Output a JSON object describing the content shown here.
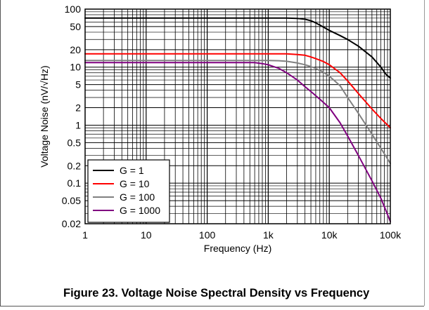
{
  "chart_data": {
    "type": "line",
    "title": "",
    "xlabel": "Frequency (Hz)",
    "ylabel": "Voltage Noise (nV/√Hz)",
    "xscale": "log",
    "yscale": "log",
    "xlim": [
      1,
      100000
    ],
    "ylim": [
      0.02,
      100
    ],
    "x_ticks": [
      1,
      10,
      100,
      1000,
      10000,
      100000
    ],
    "x_tick_labels": [
      "1",
      "10",
      "100",
      "1k",
      "10k",
      "100k"
    ],
    "y_ticks": [
      0.02,
      0.05,
      0.1,
      0.2,
      0.5,
      1,
      2,
      5,
      10,
      20,
      50,
      100
    ],
    "y_tick_labels": [
      "0.02",
      "0.05",
      "0.1",
      "0.2",
      "0.5",
      "1",
      "2",
      "5",
      "10",
      "20",
      "50",
      "100"
    ],
    "grid": true,
    "legend_position": "bottom-left",
    "series": [
      {
        "name": "G = 1",
        "color": "#000000",
        "x": [
          1,
          100,
          1000,
          2000,
          3000,
          4000,
          5000,
          6000,
          7000,
          8000,
          10000,
          15000,
          20000,
          30000,
          50000,
          70000,
          85000,
          100000
        ],
        "y": [
          70,
          70,
          70,
          70,
          69,
          67,
          63,
          58,
          53,
          49,
          43,
          35,
          30,
          23,
          15,
          10,
          7.5,
          6.5
        ]
      },
      {
        "name": "G = 10",
        "color": "#ff0000",
        "x": [
          1,
          100,
          1000,
          2000,
          3000,
          4000,
          5000,
          6000,
          8000,
          10000,
          15000,
          20000,
          30000,
          50000,
          70000,
          100000
        ],
        "y": [
          17,
          17,
          17,
          17,
          16.5,
          16,
          15,
          14,
          12.5,
          11,
          8,
          5.8,
          3.5,
          1.9,
          1.3,
          0.9
        ]
      },
      {
        "name": "G = 100",
        "color": "#808080",
        "x": [
          1,
          100,
          1000,
          1500,
          2000,
          3000,
          4000,
          5000,
          6000,
          8000,
          10000,
          15000,
          20000,
          30000,
          50000,
          70000,
          100000
        ],
        "y": [
          13,
          13,
          13,
          12.9,
          12.6,
          11.8,
          11,
          10.2,
          9.5,
          8.2,
          7,
          4.8,
          3,
          1.6,
          0.7,
          0.4,
          0.22
        ]
      },
      {
        "name": "G = 1000",
        "color": "#800080",
        "x": [
          1,
          100,
          600,
          800,
          1000,
          1500,
          2000,
          3000,
          4000,
          5000,
          7000,
          10000,
          15000,
          20000,
          30000,
          50000,
          70000,
          100000
        ],
        "y": [
          12,
          12,
          12,
          11.5,
          11,
          9.5,
          8,
          6,
          4.6,
          3.8,
          2.8,
          2,
          1.1,
          0.65,
          0.3,
          0.11,
          0.055,
          0.022
        ]
      }
    ]
  },
  "caption": "Figure 23. Voltage Noise Spectral Density vs Frequency"
}
